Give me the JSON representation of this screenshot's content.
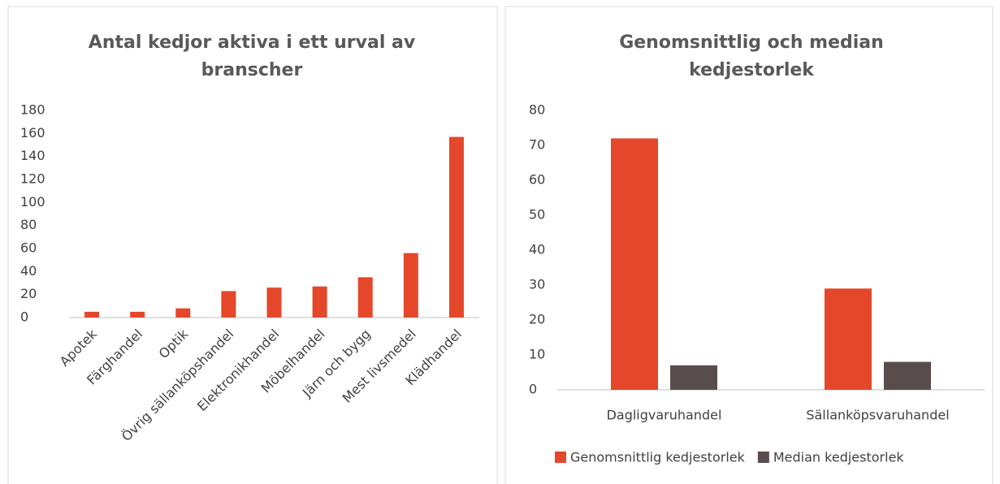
{
  "chart_data": [
    {
      "type": "bar",
      "title": "Antal kedjor aktiva i ett urval av branscher",
      "categories": [
        "Apotek",
        "Färghandel",
        "Optik",
        "Övrig sällanköpshandel",
        "Elektronikhandel",
        "Möbelhandel",
        "Järn och bygg",
        "Mest livsmedel",
        "Klädhandel"
      ],
      "values": [
        5,
        5,
        8,
        23,
        26,
        27,
        35,
        56,
        157
      ],
      "color": "#e5472b",
      "ylim": [
        0,
        180
      ],
      "yticks": [
        0,
        20,
        40,
        60,
        80,
        100,
        120,
        140,
        160,
        180
      ],
      "grid": false
    },
    {
      "type": "grouped-bar",
      "title": "Genomsnittlig och median kedjestorlek",
      "categories": [
        "Dagligvaruhandel",
        "Sällanköpsvaruhandel"
      ],
      "series": [
        {
          "name": "Genomsnittlig kedjestorlek",
          "color": "#e5472b",
          "values": [
            72,
            29
          ]
        },
        {
          "name": "Median kedjestorlek",
          "color": "#594c4c",
          "values": [
            7,
            8
          ]
        }
      ],
      "ylim": [
        0,
        80
      ],
      "yticks": [
        0,
        10,
        20,
        30,
        40,
        50,
        60,
        70,
        80
      ],
      "grid": false,
      "legend": "bottom"
    }
  ]
}
